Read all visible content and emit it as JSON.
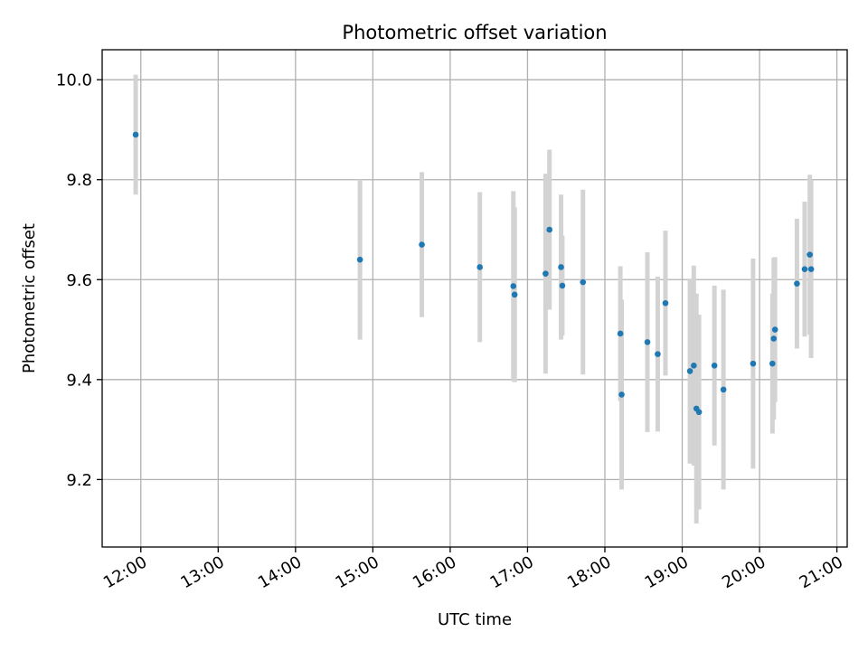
{
  "chart_data": {
    "type": "scatter",
    "title": "Photometric offset variation",
    "xlabel": "UTC time",
    "ylabel": "Photometric offset",
    "x_unit": "hours UTC",
    "xlim": [
      "11:30",
      "21:08"
    ],
    "ylim": [
      9.065,
      10.06
    ],
    "x_ticks": [
      "12:00",
      "13:00",
      "14:00",
      "15:00",
      "16:00",
      "17:00",
      "18:00",
      "19:00",
      "20:00",
      "21:00"
    ],
    "y_ticks": [
      "9.2",
      "9.4",
      "9.6",
      "9.8",
      "10.0"
    ],
    "grid": true,
    "colors": {
      "points": "#1f77b4",
      "errorbars": "#d3d3d3",
      "grid": "#b0b0b0"
    },
    "series": [
      {
        "points": [
          {
            "x": "11:56",
            "y": 9.89,
            "err": 0.12
          },
          {
            "x": "14:50",
            "y": 9.64,
            "err": 0.16
          },
          {
            "x": "15:38",
            "y": 9.67,
            "err": 0.145
          },
          {
            "x": "16:23",
            "y": 9.625,
            "err": 0.15
          },
          {
            "x": "16:49",
            "y": 9.587,
            "err": 0.19
          },
          {
            "x": "16:50",
            "y": 9.57,
            "err": 0.175
          },
          {
            "x": "17:14",
            "y": 9.612,
            "err": 0.2
          },
          {
            "x": "17:17",
            "y": 9.7,
            "err": 0.16
          },
          {
            "x": "17:26",
            "y": 9.625,
            "err": 0.145
          },
          {
            "x": "17:27",
            "y": 9.588,
            "err": 0.1
          },
          {
            "x": "17:43",
            "y": 9.595,
            "err": 0.185
          },
          {
            "x": "18:12",
            "y": 9.492,
            "err": 0.135
          },
          {
            "x": "18:13",
            "y": 9.37,
            "err": 0.19
          },
          {
            "x": "18:33",
            "y": 9.475,
            "err": 0.18
          },
          {
            "x": "18:41",
            "y": 9.451,
            "err": 0.155
          },
          {
            "x": "18:47",
            "y": 9.553,
            "err": 0.145
          },
          {
            "x": "19:06",
            "y": 9.417,
            "err": 0.185
          },
          {
            "x": "19:09",
            "y": 9.428,
            "err": 0.2
          },
          {
            "x": "19:11",
            "y": 9.342,
            "err": 0.23
          },
          {
            "x": "19:13",
            "y": 9.335,
            "err": 0.195
          },
          {
            "x": "19:25",
            "y": 9.428,
            "err": 0.16
          },
          {
            "x": "19:32",
            "y": 9.38,
            "err": 0.2
          },
          {
            "x": "19:55",
            "y": 9.432,
            "err": 0.21
          },
          {
            "x": "20:10",
            "y": 9.432,
            "err": 0.14
          },
          {
            "x": "20:11",
            "y": 9.482,
            "err": 0.162
          },
          {
            "x": "20:12",
            "y": 9.5,
            "err": 0.145
          },
          {
            "x": "20:29",
            "y": 9.592,
            "err": 0.13
          },
          {
            "x": "20:35",
            "y": 9.621,
            "err": 0.135
          },
          {
            "x": "20:39",
            "y": 9.65,
            "err": 0.16
          },
          {
            "x": "20:40",
            "y": 9.621,
            "err": 0.178
          }
        ]
      }
    ]
  }
}
